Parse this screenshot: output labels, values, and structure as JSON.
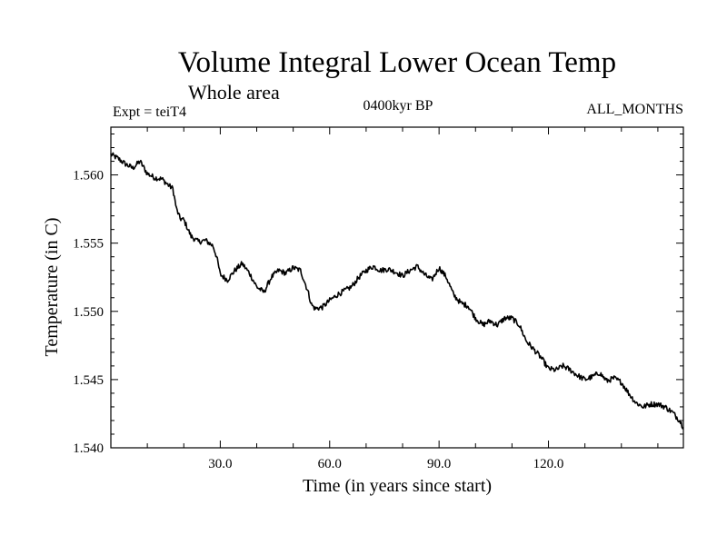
{
  "chart_data": {
    "type": "line",
    "title": "Volume Integral Lower Ocean Temp",
    "subtitle": "Whole area",
    "experiment_label": "Expt = teiT4",
    "period_label": "0400kyr BP",
    "months_label": "ALL_MONTHS",
    "xlabel": "Time (in years since start)",
    "ylabel": "Temperature (in C)",
    "xlim": [
      0,
      157
    ],
    "ylim": [
      1.54,
      1.5635
    ],
    "x_ticks": [
      {
        "value": 30,
        "label": "30.0"
      },
      {
        "value": 60,
        "label": "60.0"
      },
      {
        "value": 90,
        "label": "90.0"
      },
      {
        "value": 120,
        "label": "120.0"
      }
    ],
    "y_ticks": [
      {
        "value": 1.54,
        "label": "1.540"
      },
      {
        "value": 1.545,
        "label": "1.545"
      },
      {
        "value": 1.55,
        "label": "1.550"
      },
      {
        "value": 1.555,
        "label": "1.555"
      },
      {
        "value": 1.56,
        "label": "1.560"
      }
    ],
    "grid": false,
    "series": [
      {
        "name": "Volume integral lower ocean temperature",
        "color": "#000000",
        "x": [
          0,
          2,
          4,
          6,
          8,
          10,
          12,
          14,
          16,
          17,
          18,
          19,
          20,
          22,
          24,
          26,
          28,
          29,
          30,
          32,
          34,
          36,
          38,
          40,
          42,
          44,
          46,
          48,
          50,
          52,
          54,
          55,
          56,
          58,
          60,
          62,
          64,
          66,
          68,
          70,
          72,
          74,
          76,
          78,
          80,
          82,
          84,
          86,
          88,
          90,
          92,
          94,
          96,
          98,
          100,
          102,
          104,
          106,
          108,
          110,
          112,
          114,
          116,
          118,
          120,
          122,
          124,
          126,
          128,
          130,
          132,
          134,
          136,
          138,
          140,
          142,
          144,
          146,
          148,
          150,
          152,
          154,
          156,
          157
        ],
        "values": [
          1.5615,
          1.5612,
          1.5608,
          1.5605,
          1.561,
          1.5601,
          1.5598,
          1.5597,
          1.5592,
          1.559,
          1.5575,
          1.5568,
          1.5567,
          1.5555,
          1.5551,
          1.5552,
          1.5548,
          1.554,
          1.5527,
          1.5523,
          1.553,
          1.5535,
          1.5528,
          1.5518,
          1.5514,
          1.5525,
          1.553,
          1.5528,
          1.5532,
          1.553,
          1.5515,
          1.5505,
          1.5502,
          1.5503,
          1.5508,
          1.5512,
          1.5515,
          1.5518,
          1.5525,
          1.553,
          1.5533,
          1.553,
          1.5531,
          1.5529,
          1.5526,
          1.553,
          1.5533,
          1.5527,
          1.5523,
          1.5532,
          1.5525,
          1.5512,
          1.5506,
          1.5504,
          1.5495,
          1.549,
          1.5493,
          1.549,
          1.5495,
          1.5495,
          1.549,
          1.5478,
          1.5472,
          1.5466,
          1.5458,
          1.5457,
          1.546,
          1.5457,
          1.5453,
          1.545,
          1.5452,
          1.5455,
          1.5449,
          1.5451,
          1.5448,
          1.544,
          1.5433,
          1.543,
          1.5432,
          1.5432,
          1.543,
          1.5426,
          1.542,
          1.5415
        ]
      }
    ]
  }
}
